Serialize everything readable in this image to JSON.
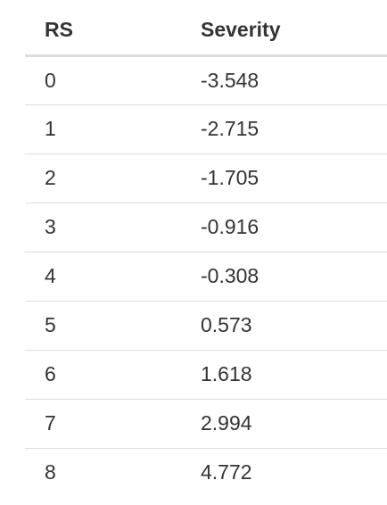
{
  "table": {
    "headers": [
      "RS",
      "Severity"
    ],
    "rows": [
      [
        "0",
        "-3.548"
      ],
      [
        "1",
        "-2.715"
      ],
      [
        "2",
        "-1.705"
      ],
      [
        "3",
        "-0.916"
      ],
      [
        "4",
        "-0.308"
      ],
      [
        "5",
        "0.573"
      ],
      [
        "6",
        "1.618"
      ],
      [
        "7",
        "2.994"
      ],
      [
        "8",
        "4.772"
      ]
    ]
  }
}
